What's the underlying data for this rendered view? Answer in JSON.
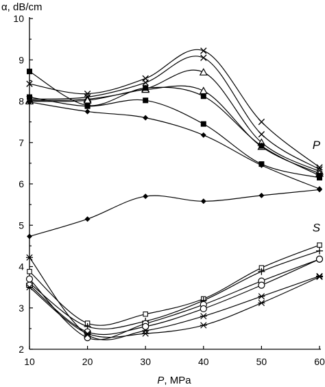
{
  "chart_data": {
    "type": "line",
    "xlabel_var": "P",
    "xlabel_unit": ", MPa",
    "ylabel": "α, dB/cm",
    "xlim": [
      10,
      60
    ],
    "ylim": [
      2,
      10
    ],
    "xticks": [
      10,
      20,
      30,
      40,
      50,
      60
    ],
    "yticks": [
      2,
      3,
      4,
      5,
      6,
      7,
      8,
      9,
      10
    ],
    "grid": false,
    "annotations": [
      {
        "text": "P",
        "x": 59.5,
        "y": 6.85
      },
      {
        "text": "S",
        "x": 59.5,
        "y": 4.85
      }
    ],
    "series": [
      {
        "marker": "cross",
        "x": [
          10,
          20,
          30,
          40,
          50,
          60
        ],
        "y": [
          8.42,
          8.18,
          8.55,
          9.22,
          7.5,
          6.4
        ]
      },
      {
        "marker": "cross",
        "x": [
          10,
          20,
          30,
          40,
          50,
          60
        ],
        "y": [
          8.05,
          8.1,
          8.45,
          9.05,
          7.2,
          6.35
        ]
      },
      {
        "marker": "triangle",
        "x": [
          10,
          20,
          30,
          40,
          50,
          60
        ],
        "y": [
          8.02,
          8.05,
          8.3,
          8.7,
          7.0,
          6.3
        ]
      },
      {
        "marker": "triangle",
        "x": [
          10,
          20,
          30,
          40,
          50,
          60
        ],
        "y": [
          8.0,
          8.02,
          8.28,
          8.25,
          6.9,
          6.25
        ]
      },
      {
        "marker": "square",
        "x": [
          10,
          20,
          30,
          40,
          50,
          60
        ],
        "y": [
          8.72,
          7.9,
          8.32,
          8.12,
          6.92,
          6.2
        ]
      },
      {
        "marker": "square",
        "x": [
          10,
          20,
          30,
          40,
          50,
          60
        ],
        "y": [
          8.1,
          7.88,
          8.02,
          7.45,
          6.48,
          6.15
        ]
      },
      {
        "marker": "diamond",
        "x": [
          10,
          20,
          30,
          40,
          50,
          60
        ],
        "y": [
          7.98,
          7.75,
          7.6,
          7.18,
          6.45,
          5.88
        ]
      },
      {
        "marker": "diamond",
        "x": [
          10,
          20,
          30,
          40,
          50,
          60
        ],
        "y": [
          4.73,
          5.15,
          5.7,
          5.58,
          5.72,
          5.86
        ]
      },
      {
        "marker": "square-small",
        "x": [
          10,
          20,
          30,
          40,
          50,
          60
        ],
        "y": [
          3.88,
          2.63,
          2.85,
          3.22,
          3.97,
          4.52
        ]
      },
      {
        "marker": "plus",
        "x": [
          10,
          20,
          30,
          40,
          50,
          60
        ],
        "y": [
          3.6,
          2.55,
          2.68,
          3.18,
          3.88,
          4.38
        ]
      },
      {
        "marker": "circle",
        "x": [
          10,
          20,
          30,
          40,
          50,
          60
        ],
        "y": [
          3.7,
          2.28,
          2.62,
          3.08,
          3.65,
          4.18
        ]
      },
      {
        "marker": "circle",
        "x": [
          10,
          20,
          30,
          40,
          50,
          60
        ],
        "y": [
          3.55,
          2.42,
          2.55,
          2.98,
          3.55,
          4.18
        ]
      },
      {
        "marker": "asterisk",
        "x": [
          10,
          20,
          30,
          40,
          50,
          60
        ],
        "y": [
          4.22,
          2.35,
          2.45,
          2.8,
          3.28,
          3.77
        ]
      },
      {
        "marker": "asterisk",
        "x": [
          10,
          20,
          30,
          40,
          50,
          60
        ],
        "y": [
          3.5,
          2.38,
          2.38,
          2.58,
          3.12,
          3.75
        ]
      }
    ]
  }
}
